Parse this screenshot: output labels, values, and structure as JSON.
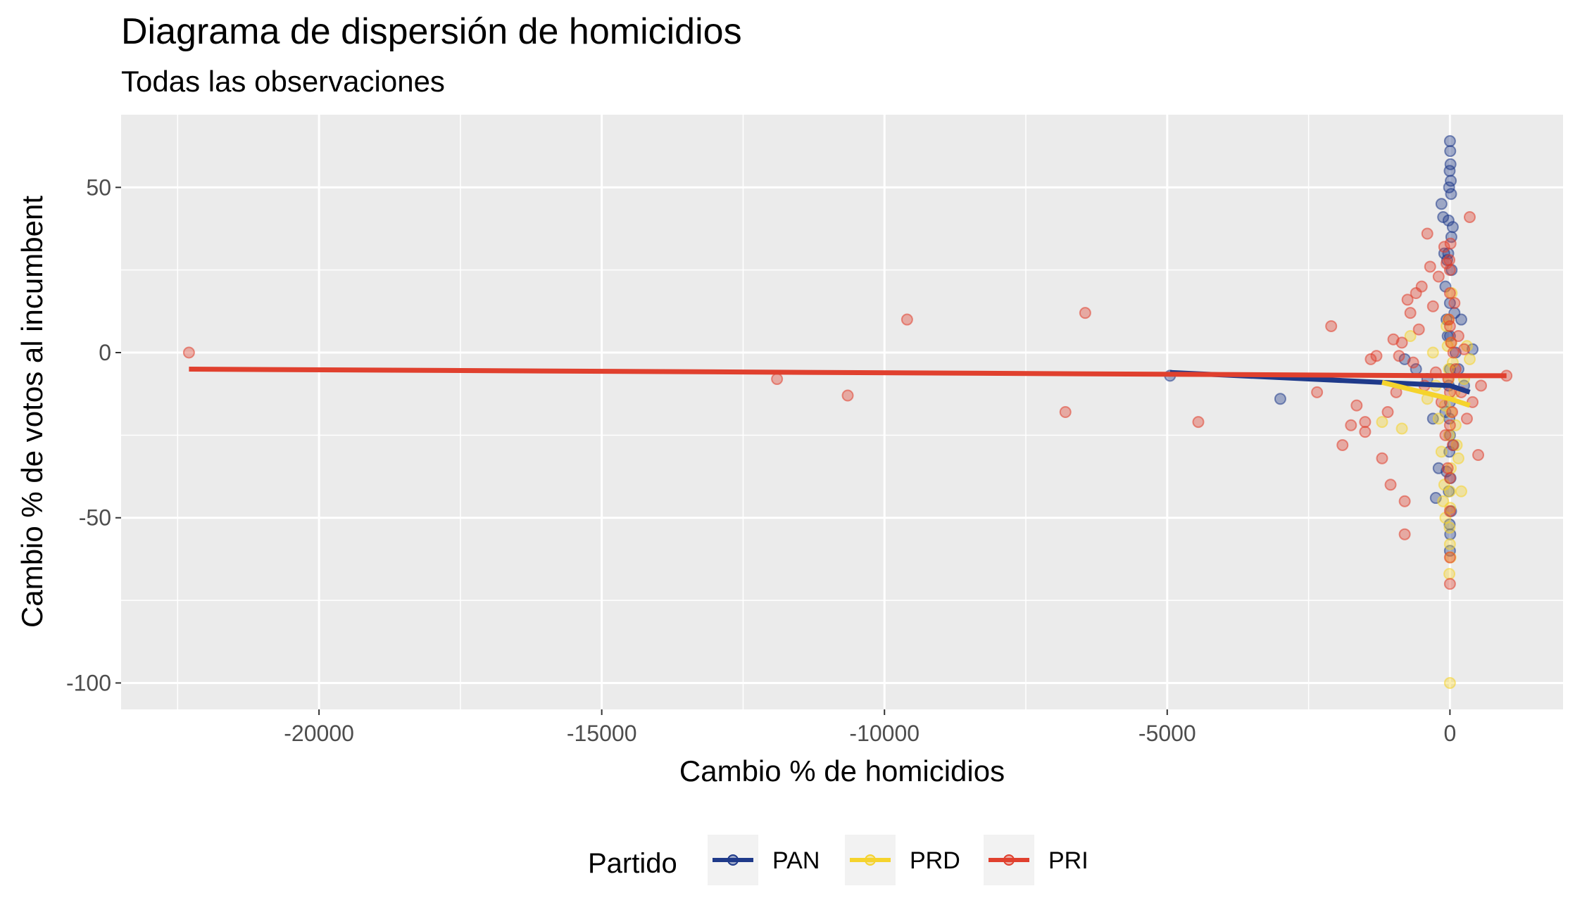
{
  "chart_data": {
    "type": "scatter",
    "title": "Diagrama de dispersión de homicidios",
    "subtitle": "Todas las observaciones",
    "xlabel": "Cambio % de homicidios",
    "ylabel": "Cambio % de votos al incumbent",
    "xlim": [
      -23500,
      2000
    ],
    "ylim": [
      -108,
      72
    ],
    "x_ticks": [
      -20000,
      -15000,
      -10000,
      -5000,
      0
    ],
    "x_tick_labels": [
      "-20000",
      "-15000",
      "-10000",
      "-5000",
      "0"
    ],
    "y_ticks": [
      50,
      0,
      -50,
      -100
    ],
    "y_tick_labels": [
      "50",
      "0",
      "-50",
      "-100"
    ],
    "grid": true,
    "legend": {
      "title": "Partido",
      "position": "bottom"
    },
    "series": [
      {
        "name": "PAN",
        "color": "#1f3a8a",
        "points": [
          [
            -4950,
            -7
          ],
          [
            -3000,
            -14
          ],
          [
            -800,
            -2
          ],
          [
            -600,
            -5
          ],
          [
            -400,
            -8
          ],
          [
            -300,
            -20
          ],
          [
            -250,
            -44
          ],
          [
            -200,
            -35
          ],
          [
            -150,
            45
          ],
          [
            -120,
            41
          ],
          [
            -100,
            30
          ],
          [
            -80,
            20
          ],
          [
            -60,
            10
          ],
          [
            -40,
            5
          ],
          [
            -20,
            -10
          ],
          [
            -10,
            -20
          ],
          [
            0,
            64
          ],
          [
            5,
            61
          ],
          [
            10,
            57
          ],
          [
            -5,
            55
          ],
          [
            15,
            52
          ],
          [
            -15,
            50
          ],
          [
            20,
            48
          ],
          [
            -25,
            40
          ],
          [
            25,
            35
          ],
          [
            -30,
            30
          ],
          [
            30,
            25
          ],
          [
            0,
            15
          ],
          [
            0,
            5
          ],
          [
            0,
            -5
          ],
          [
            0,
            -15
          ],
          [
            0,
            -25
          ],
          [
            -10,
            -30
          ],
          [
            10,
            -38
          ],
          [
            -20,
            -42
          ],
          [
            20,
            -48
          ],
          [
            -5,
            -52
          ],
          [
            5,
            -55
          ],
          [
            0,
            -60
          ],
          [
            100,
            0
          ],
          [
            150,
            -5
          ],
          [
            200,
            10
          ],
          [
            250,
            -10
          ],
          [
            400,
            1
          ],
          [
            50,
            38
          ],
          [
            -50,
            28
          ],
          [
            80,
            12
          ],
          [
            -80,
            -18
          ],
          [
            60,
            -28
          ],
          [
            -60,
            -36
          ]
        ],
        "fit": [
          [
            -4950,
            -6
          ],
          [
            0,
            -10
          ],
          [
            350,
            -12
          ]
        ]
      },
      {
        "name": "PRD",
        "color": "#f5d32c",
        "points": [
          [
            -1200,
            -21
          ],
          [
            -850,
            -23
          ],
          [
            -700,
            5
          ],
          [
            -400,
            -14
          ],
          [
            -300,
            0
          ],
          [
            -250,
            -10
          ],
          [
            -200,
            -20
          ],
          [
            -150,
            -30
          ],
          [
            -100,
            -40
          ],
          [
            -80,
            -50
          ],
          [
            -60,
            8
          ],
          [
            -40,
            2
          ],
          [
            -20,
            -5
          ],
          [
            0,
            -100
          ],
          [
            -10,
            -67
          ],
          [
            10,
            -62
          ],
          [
            0,
            -58
          ],
          [
            -5,
            -53
          ],
          [
            5,
            -47
          ],
          [
            0,
            -42
          ],
          [
            15,
            -35
          ],
          [
            -15,
            -25
          ],
          [
            20,
            -18
          ],
          [
            -20,
            -8
          ],
          [
            25,
            3
          ],
          [
            -25,
            10
          ],
          [
            30,
            18
          ],
          [
            50,
            -3
          ],
          [
            80,
            -12
          ],
          [
            100,
            -22
          ],
          [
            150,
            -32
          ],
          [
            200,
            -42
          ],
          [
            250,
            -8
          ],
          [
            300,
            2
          ],
          [
            350,
            -2
          ],
          [
            -120,
            -45
          ],
          [
            -90,
            -16
          ],
          [
            120,
            -28
          ]
        ],
        "fit": [
          [
            -1200,
            -9
          ],
          [
            0,
            -14
          ],
          [
            350,
            -16
          ]
        ]
      },
      {
        "name": "PRI",
        "color": "#e0402e",
        "points": [
          [
            -22300,
            0
          ],
          [
            -11900,
            -8
          ],
          [
            -10650,
            -13
          ],
          [
            -9600,
            10
          ],
          [
            -6800,
            -18
          ],
          [
            -6450,
            12
          ],
          [
            -4450,
            -21
          ],
          [
            -2350,
            -12
          ],
          [
            -2100,
            8
          ],
          [
            -1900,
            -28
          ],
          [
            -1750,
            -22
          ],
          [
            -1650,
            -16
          ],
          [
            -1500,
            -24
          ],
          [
            -1500,
            -21
          ],
          [
            -1400,
            -2
          ],
          [
            -1300,
            -1
          ],
          [
            -1200,
            -32
          ],
          [
            -1100,
            -18
          ],
          [
            -1050,
            -40
          ],
          [
            -1000,
            4
          ],
          [
            -950,
            -12
          ],
          [
            -900,
            -1
          ],
          [
            -850,
            3
          ],
          [
            -800,
            -45
          ],
          [
            -800,
            -55
          ],
          [
            -750,
            16
          ],
          [
            -700,
            12
          ],
          [
            -650,
            -3
          ],
          [
            -600,
            18
          ],
          [
            -550,
            7
          ],
          [
            -500,
            20
          ],
          [
            -450,
            -10
          ],
          [
            -400,
            36
          ],
          [
            -350,
            26
          ],
          [
            -300,
            14
          ],
          [
            -250,
            -6
          ],
          [
            -200,
            23
          ],
          [
            -150,
            -15
          ],
          [
            -100,
            32
          ],
          [
            -80,
            -25
          ],
          [
            -60,
            27
          ],
          [
            -40,
            -35
          ],
          [
            -20,
            10
          ],
          [
            0,
            25
          ],
          [
            0,
            18
          ],
          [
            0,
            8
          ],
          [
            0,
            -12
          ],
          [
            0,
            -22
          ],
          [
            0,
            -38
          ],
          [
            0,
            -48
          ],
          [
            0,
            -62
          ],
          [
            0,
            -70
          ],
          [
            10,
            33
          ],
          [
            -10,
            28
          ],
          [
            20,
            3
          ],
          [
            -30,
            -8
          ],
          [
            40,
            -18
          ],
          [
            50,
            -28
          ],
          [
            60,
            0
          ],
          [
            80,
            15
          ],
          [
            100,
            -5
          ],
          [
            150,
            5
          ],
          [
            200,
            -12
          ],
          [
            250,
            1
          ],
          [
            300,
            -20
          ],
          [
            350,
            41
          ],
          [
            400,
            -15
          ],
          [
            500,
            -31
          ],
          [
            550,
            -10
          ],
          [
            1000,
            -7
          ]
        ],
        "fit": [
          [
            -22300,
            -5
          ],
          [
            0,
            -7
          ],
          [
            1000,
            -7
          ]
        ]
      }
    ]
  }
}
